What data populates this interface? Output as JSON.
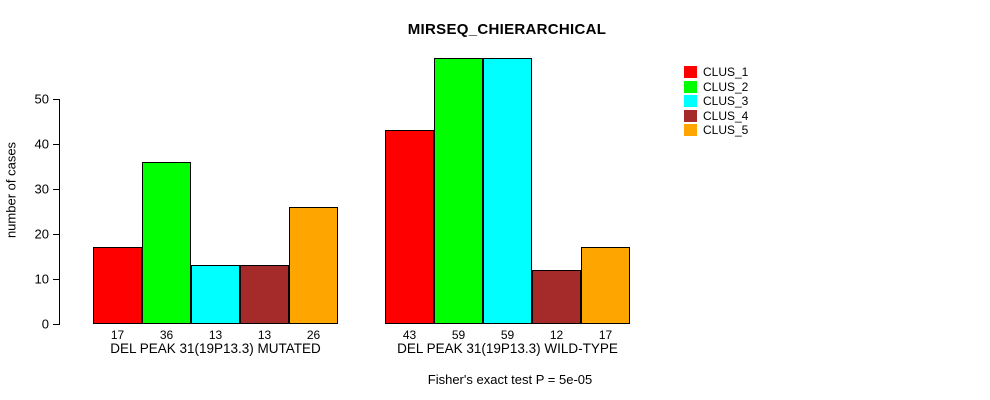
{
  "title": "MIRSEQ_CHIERARCHICAL",
  "footer": "Fisher's exact test P = 5e-05",
  "legend": {
    "position": "right",
    "entries": [
      {
        "label": "CLUS_1",
        "color": "#FF0000"
      },
      {
        "label": "CLUS_2",
        "color": "#00FF00"
      },
      {
        "label": "CLUS_3",
        "color": "#00FFFF"
      },
      {
        "label": "CLUS_4",
        "color": "#A52A2A"
      },
      {
        "label": "CLUS_5",
        "color": "#FFA500"
      }
    ]
  },
  "chart_data": {
    "type": "bar",
    "title": "MIRSEQ_CHIERARCHICAL",
    "ylabel": "number of cases",
    "xlabel": "",
    "yticks": [
      0,
      10,
      20,
      30,
      40,
      50
    ],
    "ylim": [
      0,
      59
    ],
    "grid": false,
    "legend_position": "right",
    "series_names": [
      "CLUS_1",
      "CLUS_2",
      "CLUS_3",
      "CLUS_4",
      "CLUS_5"
    ],
    "series_colors": [
      "#FF0000",
      "#00FF00",
      "#00FFFF",
      "#A52A2A",
      "#FFA500"
    ],
    "groups": [
      {
        "label": "DEL PEAK 31(19P13.3) MUTATED",
        "values": [
          17,
          36,
          13,
          13,
          26
        ]
      },
      {
        "label": "DEL PEAK 31(19P13.3) WILD-TYPE",
        "values": [
          43,
          59,
          59,
          12,
          17
        ]
      }
    ],
    "bar_value_labels_shown": true,
    "annotation": "Fisher's exact test P = 5e-05"
  }
}
